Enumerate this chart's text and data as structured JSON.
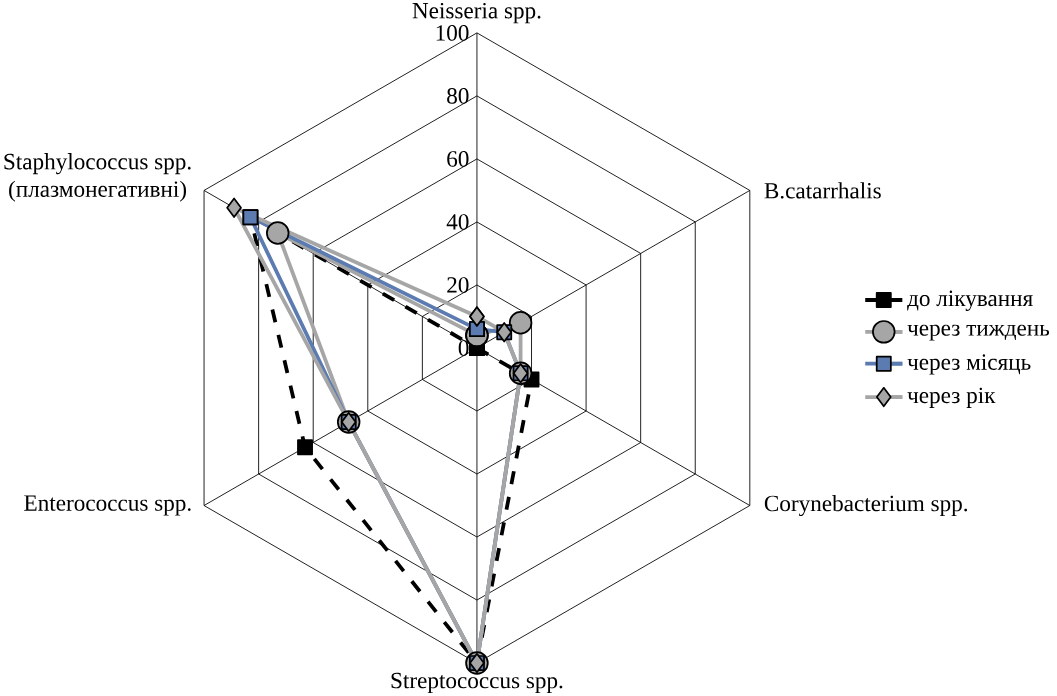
{
  "chart_data": {
    "type": "radar",
    "categories": [
      "Neisseria spp.",
      "B.catarrhalis",
      "Corynebacterium spp.",
      "Streptococcus spp.",
      "Enterococcus spp.",
      "Staphylococcus spp. (плазмонегативні)"
    ],
    "series": [
      {
        "name": "до лікування",
        "color": "#000000",
        "values": [
          0,
          0,
          20,
          100,
          63,
          83
        ],
        "marker": "square",
        "line_style": "dashed"
      },
      {
        "name": "через тиждень",
        "color": "#a6a6a6",
        "values": [
          4,
          16,
          16,
          100,
          47,
          73
        ],
        "marker": "circle",
        "line_style": "solid"
      },
      {
        "name": "через місяць",
        "color": "#5b7bb1",
        "values": [
          6,
          10,
          16,
          100,
          47,
          83
        ],
        "marker": "square",
        "line_style": "solid"
      },
      {
        "name": "через рік",
        "color": "#a6a6a6",
        "values": [
          10,
          10,
          16,
          100,
          47,
          89
        ],
        "marker": "diamond",
        "line_style": "solid"
      }
    ],
    "ylim": [
      0,
      100
    ],
    "yticks": [
      0,
      20,
      40,
      60,
      80,
      100
    ],
    "grid": true,
    "legend": "right"
  }
}
